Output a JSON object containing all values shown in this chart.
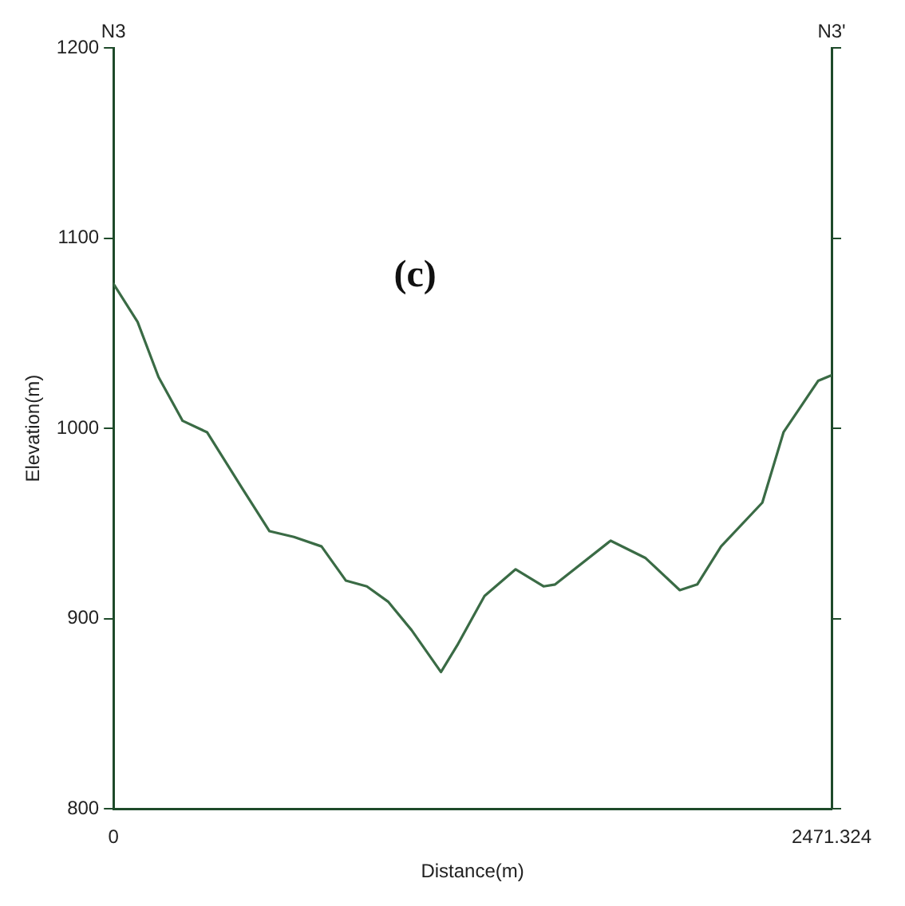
{
  "chart_data": {
    "type": "line",
    "xlabel": "Distance(m)",
    "ylabel": "Elevation(m)",
    "annotations": [
      "(c)",
      "N3",
      "N3'"
    ],
    "series": [
      {
        "color": "#3a6b45",
        "x": [
          0,
          83,
          155,
          238,
          322,
          441,
          537,
          621,
          716,
          800,
          872,
          945,
          1026,
          1127,
          1183,
          1277,
          1384,
          1480,
          1520,
          1711,
          1830,
          1949,
          2009,
          2091,
          2233,
          2306,
          2425,
          2471.324
        ],
        "values": [
          1076,
          1056,
          1027,
          1004,
          998,
          969,
          946,
          943,
          938,
          920,
          917,
          909,
          894,
          872,
          886,
          912,
          926,
          917,
          918,
          941,
          932,
          915,
          918,
          938,
          961,
          998,
          1025,
          1028
        ]
      }
    ],
    "xlim": [
      0,
      2471.324
    ],
    "xticks": [
      0,
      2471.324
    ],
    "ylim": [
      800,
      1200
    ],
    "yticks": [
      800,
      900,
      1000,
      1100,
      1200
    ],
    "grid": false,
    "legend": false,
    "marker": "none",
    "line_style": "solid"
  }
}
